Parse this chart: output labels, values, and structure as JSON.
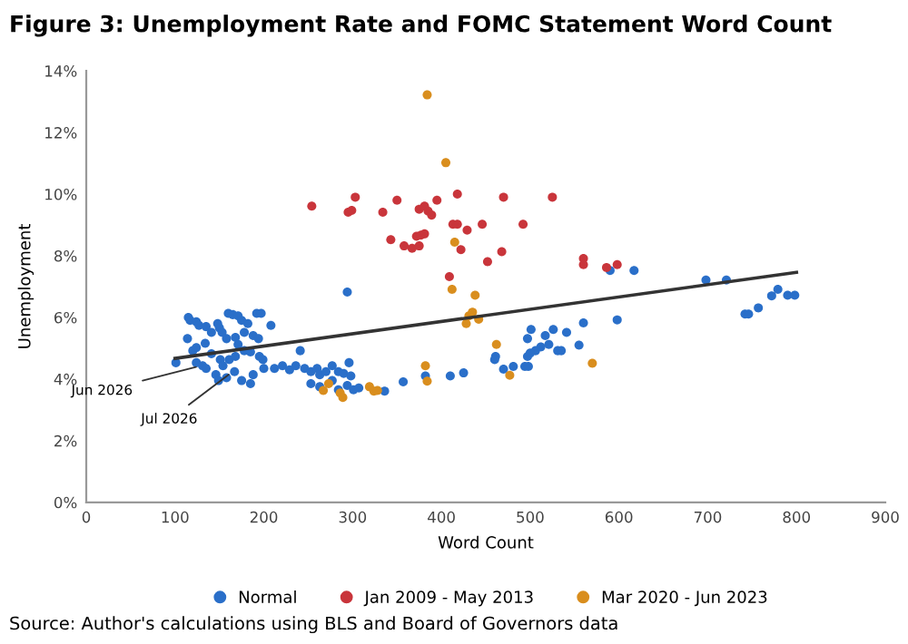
{
  "chart_data": {
    "type": "scatter",
    "title": "Figure 3: Unemployment Rate and FOMC Statement Word Count",
    "xlabel": "Word Count",
    "ylabel": "Unemployment",
    "xlim": [
      0,
      900
    ],
    "xticks": [
      0,
      100,
      200,
      300,
      400,
      500,
      600,
      700,
      800,
      900
    ],
    "ylim": [
      0,
      14
    ],
    "yticks": [
      {
        "value": 0,
        "label": "0%"
      },
      {
        "value": 2,
        "label": "2%"
      },
      {
        "value": 4,
        "label": "4%"
      },
      {
        "value": 6,
        "label": "6%"
      },
      {
        "value": 8,
        "label": "8%"
      },
      {
        "value": 10,
        "label": "10%"
      },
      {
        "value": 12,
        "label": "12%"
      },
      {
        "value": 14,
        "label": "14%"
      }
    ],
    "grid": false,
    "legend": "bottom",
    "marker": "circle",
    "annotations": [
      {
        "text": "Jun 2026",
        "x": 129,
        "y": 4.43
      },
      {
        "text": "Jul 2026",
        "x": 165,
        "y": 4.24
      },
      "Source: Author's calculations using BLS and Board of Governors data"
    ],
    "series": [
      {
        "name": "Normal",
        "color": "#2a6fc9",
        "x": [
          101,
          115,
          117,
          124,
          127,
          135,
          148,
          150,
          153,
          158,
          160,
          165,
          171,
          175,
          182,
          192,
          197,
          208,
          188,
          194,
          168,
          171,
          178,
          185,
          195,
          199,
          120,
          124,
          134,
          141,
          151,
          154,
          161,
          168,
          124,
          131,
          135,
          146,
          149,
          158,
          167,
          175,
          185,
          188,
          200,
          212,
          221,
          229,
          241,
          236,
          246,
          253,
          260,
          263,
          270,
          277,
          284,
          290,
          296,
          298,
          253,
          263,
          277,
          284,
          294,
          301,
          307,
          336,
          357,
          294,
          382,
          410,
          425,
          114,
          141,
          178,
          590,
          617,
          698,
          721,
          742,
          746,
          757,
          772,
          779,
          790,
          798,
          598,
          560,
          555,
          541,
          526,
          517,
          531,
          535,
          521,
          512,
          506,
          501,
          497,
          497,
          500,
          494,
          498,
          481,
          470,
          461,
          460
        ],
        "values": [
          4.53,
          6.0,
          5.9,
          5.86,
          5.74,
          5.7,
          5.8,
          5.66,
          5.51,
          5.31,
          6.13,
          6.09,
          6.05,
          5.9,
          5.8,
          6.13,
          6.13,
          5.74,
          5.41,
          5.31,
          5.35,
          5.12,
          4.92,
          4.88,
          4.73,
          4.63,
          4.92,
          5.02,
          5.16,
          4.82,
          4.63,
          4.43,
          4.63,
          4.73,
          4.53,
          4.43,
          4.34,
          4.14,
          3.95,
          4.04,
          4.24,
          3.95,
          3.85,
          4.14,
          4.34,
          4.34,
          4.43,
          4.3,
          4.92,
          4.43,
          4.34,
          4.24,
          4.34,
          4.14,
          4.24,
          4.43,
          4.24,
          4.18,
          4.53,
          4.1,
          3.85,
          3.75,
          3.95,
          3.65,
          3.79,
          3.65,
          3.71,
          3.61,
          3.91,
          6.82,
          4.1,
          4.1,
          4.2,
          5.31,
          5.51,
          5.51,
          7.52,
          7.52,
          7.21,
          7.21,
          6.11,
          6.11,
          6.31,
          6.7,
          6.91,
          6.72,
          6.72,
          5.92,
          5.82,
          5.1,
          5.51,
          5.61,
          5.41,
          4.92,
          4.92,
          5.12,
          5.04,
          4.92,
          5.61,
          5.31,
          4.73,
          4.84,
          4.41,
          4.41,
          4.41,
          4.32,
          4.73,
          4.63
        ]
      },
      {
        "name": "Jan 2009 - May 2013",
        "color": "#c9353b",
        "x": [
          254,
          295,
          299,
          303,
          334,
          350,
          343,
          358,
          367,
          375,
          372,
          377,
          381,
          375,
          381,
          385,
          389,
          395,
          418,
          413,
          418,
          429,
          422,
          446,
          452,
          409,
          470,
          525,
          492,
          468,
          560,
          560,
          586,
          598
        ],
        "values": [
          9.61,
          9.41,
          9.47,
          9.9,
          9.41,
          9.8,
          8.52,
          8.32,
          8.24,
          8.32,
          8.63,
          8.67,
          8.71,
          9.51,
          9.61,
          9.45,
          9.32,
          9.8,
          10.0,
          9.02,
          9.02,
          8.83,
          8.2,
          9.02,
          7.81,
          7.32,
          9.9,
          9.9,
          9.02,
          8.13,
          7.91,
          7.71,
          7.62,
          7.71
        ]
      },
      {
        "name": "Mar 2020 - Jun 2023",
        "color": "#d98e1e",
        "x": [
          384,
          405,
          415,
          412,
          438,
          435,
          431,
          428,
          382,
          384,
          267,
          273,
          286,
          289,
          319,
          324,
          328,
          442,
          462,
          477,
          570
        ],
        "values": [
          13.22,
          11.02,
          8.44,
          6.91,
          6.72,
          6.17,
          6.05,
          5.8,
          4.43,
          3.93,
          3.63,
          3.85,
          3.55,
          3.4,
          3.75,
          3.61,
          3.63,
          5.94,
          5.12,
          4.12,
          4.51
        ]
      },
      {
        "type": "line",
        "color": "#333333",
        "marker": "none",
        "line_style": "solid",
        "x": [
          100,
          800
        ],
        "values": [
          4.67,
          7.46
        ]
      }
    ]
  }
}
